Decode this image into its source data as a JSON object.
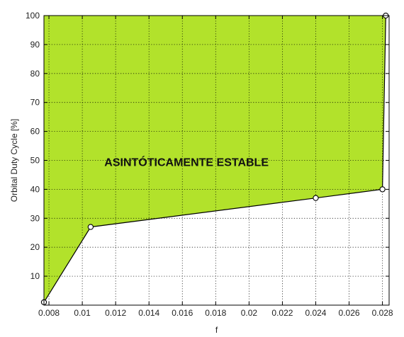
{
  "chart_data": {
    "type": "area",
    "title": "",
    "xlabel": "f",
    "ylabel": "Orbital Duty Cycle [%]",
    "xlim": [
      0.0077,
      0.0284
    ],
    "ylim": [
      0,
      100
    ],
    "xticks": [
      0.008,
      0.01,
      0.012,
      0.014,
      0.016,
      0.018,
      0.02,
      0.022,
      0.024,
      0.026,
      0.028
    ],
    "xtick_labels": [
      "0.008",
      "0.01",
      "0.012",
      "0.014",
      "0.016",
      "0.018",
      "0.02",
      "0.022",
      "0.024",
      "0.026",
      "0.028"
    ],
    "yticks": [
      10,
      20,
      30,
      40,
      50,
      60,
      70,
      80,
      90,
      100
    ],
    "ytick_labels": [
      "10",
      "20",
      "30",
      "40",
      "50",
      "60",
      "70",
      "80",
      "90",
      "100"
    ],
    "grid": true,
    "grid_style": "dotted",
    "series": [
      {
        "x": [
          0.0077,
          0.0105,
          0.024,
          0.028,
          0.0281,
          0.0282
        ],
        "y": [
          1,
          27,
          37,
          40,
          70,
          100
        ],
        "markers": [
          {
            "x": 0.0077,
            "y": 1
          },
          {
            "x": 0.0105,
            "y": 27
          },
          {
            "x": 0.024,
            "y": 37
          },
          {
            "x": 0.028,
            "y": 40
          },
          {
            "x": 0.0282,
            "y": 100
          }
        ]
      }
    ],
    "annotations": [
      {
        "text": "ASINTÓTICAMENTE ESTABLE",
        "x": 0.01625,
        "y": 49.5
      }
    ],
    "colors": {
      "fill": "#B2E22B",
      "line": "#000000",
      "grid": "#000000",
      "axis": "#000000",
      "marker_face": "#ffffff"
    }
  }
}
